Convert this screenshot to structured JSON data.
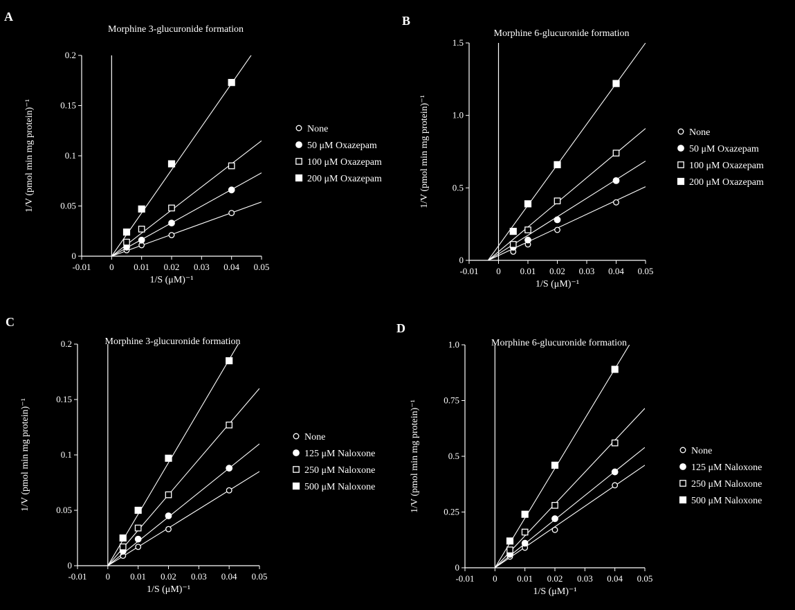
{
  "chart_data": [
    {
      "type": "line",
      "panel": "A",
      "title": "Morphine 3-glucuronide formation",
      "xlabel": "1/S (μM)⁻¹",
      "ylabel": "1/V (pmol min mg protein)⁻¹",
      "xlim": [
        -0.01,
        0.05
      ],
      "ylim": [
        0,
        0.2
      ],
      "xticks": [
        "-0.01",
        "0",
        "0.01",
        "0.02",
        "0.03",
        "0.04",
        "0.05"
      ],
      "yticks": [
        "0",
        "0.05",
        "0.1",
        "0.15",
        "0.2"
      ],
      "grid": false,
      "legend_position": "right",
      "series": [
        {
          "name": "None",
          "marker": "open-circle",
          "x": [
            0.005,
            0.01,
            0.02,
            0.04
          ],
          "y": [
            0.006,
            0.011,
            0.021,
            0.043
          ],
          "fit": [
            0,
            1.08,
            0.0
          ]
        },
        {
          "name": "50 μM Oxazepam",
          "marker": "filled-circle",
          "x": [
            0.005,
            0.01,
            0.02,
            0.04
          ],
          "y": [
            0.009,
            0.016,
            0.033,
            0.066
          ],
          "fit": [
            0,
            1.66,
            0.0
          ]
        },
        {
          "name": "100 μM Oxazepam",
          "marker": "open-square",
          "x": [
            0.005,
            0.01,
            0.02,
            0.04
          ],
          "y": [
            0.014,
            0.027,
            0.048,
            0.09
          ],
          "fit": [
            0,
            2.3,
            0.0
          ]
        },
        {
          "name": "200 μM Oxazepam",
          "marker": "filled-square",
          "x": [
            0.005,
            0.01,
            0.02,
            0.04
          ],
          "y": [
            0.024,
            0.047,
            0.092,
            0.173
          ],
          "fit": [
            0,
            4.3,
            0.0
          ]
        }
      ]
    },
    {
      "type": "line",
      "panel": "B",
      "title": "Morphine 6-glucuronide formation",
      "xlabel": "1/S (μM)⁻¹",
      "ylabel": "1/V (pmol min mg protein)⁻¹",
      "xlim": [
        -0.01,
        0.05
      ],
      "ylim": [
        0,
        1.5
      ],
      "xticks": [
        "-0.01",
        "0",
        "0.01",
        "0.02",
        "0.03",
        "0.04",
        "0.05"
      ],
      "yticks": [
        "0",
        "0.5",
        "1.0",
        "1.5"
      ],
      "grid": false,
      "legend_position": "right",
      "series": [
        {
          "name": "None",
          "marker": "open-circle",
          "x": [
            0.005,
            0.01,
            0.02,
            0.04
          ],
          "y": [
            0.06,
            0.11,
            0.21,
            0.4
          ],
          "fit": [
            -0.0035,
            9.5,
            0.033
          ]
        },
        {
          "name": "50 μM Oxazepam",
          "marker": "filled-circle",
          "x": [
            0.005,
            0.01,
            0.02,
            0.04
          ],
          "y": [
            0.09,
            0.14,
            0.28,
            0.55
          ],
          "fit": [
            -0.0035,
            12.8,
            0.045
          ]
        },
        {
          "name": "100 μM Oxazepam",
          "marker": "open-square",
          "x": [
            0.005,
            0.01,
            0.02,
            0.04
          ],
          "y": [
            0.11,
            0.21,
            0.41,
            0.74
          ],
          "fit": [
            -0.0035,
            17.0,
            0.06
          ]
        },
        {
          "name": "200 μM Oxazepam",
          "marker": "filled-square",
          "x": [
            0.005,
            0.01,
            0.02,
            0.04
          ],
          "y": [
            0.2,
            0.39,
            0.66,
            1.22
          ],
          "fit": [
            -0.0035,
            28.0,
            0.1
          ]
        }
      ]
    },
    {
      "type": "line",
      "panel": "C",
      "title": "Morphine 3-glucuronide formation",
      "xlabel": "1/S (μM)⁻¹",
      "ylabel": "1/V (pmol min mg protein)⁻¹",
      "xlim": [
        -0.01,
        0.05
      ],
      "ylim": [
        0,
        0.2
      ],
      "xticks": [
        "-0.01",
        "0",
        "0.01",
        "0.02",
        "0.03",
        "0.04",
        "0.05"
      ],
      "yticks": [
        "0",
        "0.05",
        "0.1",
        "0.15",
        "0.2"
      ],
      "grid": false,
      "legend_position": "right",
      "series": [
        {
          "name": "None",
          "marker": "open-circle",
          "x": [
            0.005,
            0.01,
            0.02,
            0.04
          ],
          "y": [
            0.009,
            0.017,
            0.033,
            0.068
          ],
          "fit": [
            -0.0005,
            1.7,
            0.0
          ]
        },
        {
          "name": "125 μM Naloxone",
          "marker": "filled-circle",
          "x": [
            0.005,
            0.01,
            0.02,
            0.04
          ],
          "y": [
            0.013,
            0.024,
            0.045,
            0.088
          ],
          "fit": [
            -0.0005,
            2.2,
            0.0
          ]
        },
        {
          "name": "250 μM Naloxone",
          "marker": "open-square",
          "x": [
            0.005,
            0.01,
            0.02,
            0.04
          ],
          "y": [
            0.017,
            0.034,
            0.064,
            0.127
          ],
          "fit": [
            -0.0005,
            3.2,
            0.0
          ]
        },
        {
          "name": "500 μM Naloxone",
          "marker": "filled-square",
          "x": [
            0.005,
            0.01,
            0.02,
            0.04
          ],
          "y": [
            0.025,
            0.05,
            0.097,
            0.185
          ],
          "fit": [
            -0.0005,
            4.65,
            0.0
          ]
        }
      ]
    },
    {
      "type": "line",
      "panel": "D",
      "title": "Morphine 6-glucuronide formation",
      "xlabel": "1/S (μM)⁻¹",
      "ylabel": "1/V (pmol min mg protein)⁻¹",
      "xlim": [
        -0.01,
        0.05
      ],
      "ylim": [
        0,
        1.0
      ],
      "xticks": [
        "-0.01",
        "0",
        "0.01",
        "0.02",
        "0.03",
        "0.04",
        "0.05"
      ],
      "yticks": [
        "0",
        "0.25",
        "0.5",
        "0.75",
        "1.0"
      ],
      "grid": false,
      "legend_position": "right",
      "series": [
        {
          "name": "None",
          "marker": "open-circle",
          "x": [
            0.005,
            0.01,
            0.02,
            0.04
          ],
          "y": [
            0.05,
            0.09,
            0.17,
            0.37
          ],
          "fit": [
            -0.0002,
            9.2,
            0.0
          ]
        },
        {
          "name": "125 μM Naloxone",
          "marker": "filled-circle",
          "x": [
            0.005,
            0.01,
            0.02,
            0.04
          ],
          "y": [
            0.06,
            0.11,
            0.22,
            0.43
          ],
          "fit": [
            -0.0002,
            10.8,
            0.0
          ]
        },
        {
          "name": "250 μM Naloxone",
          "marker": "open-square",
          "x": [
            0.005,
            0.01,
            0.02,
            0.04
          ],
          "y": [
            0.08,
            0.16,
            0.28,
            0.56
          ],
          "fit": [
            -0.0002,
            14.3,
            0.0
          ]
        },
        {
          "name": "500 μM Naloxone",
          "marker": "filled-square",
          "x": [
            0.005,
            0.01,
            0.02,
            0.04
          ],
          "y": [
            0.12,
            0.24,
            0.46,
            0.89
          ],
          "fit": [
            -0.0002,
            22.3,
            0.0
          ]
        }
      ]
    }
  ]
}
